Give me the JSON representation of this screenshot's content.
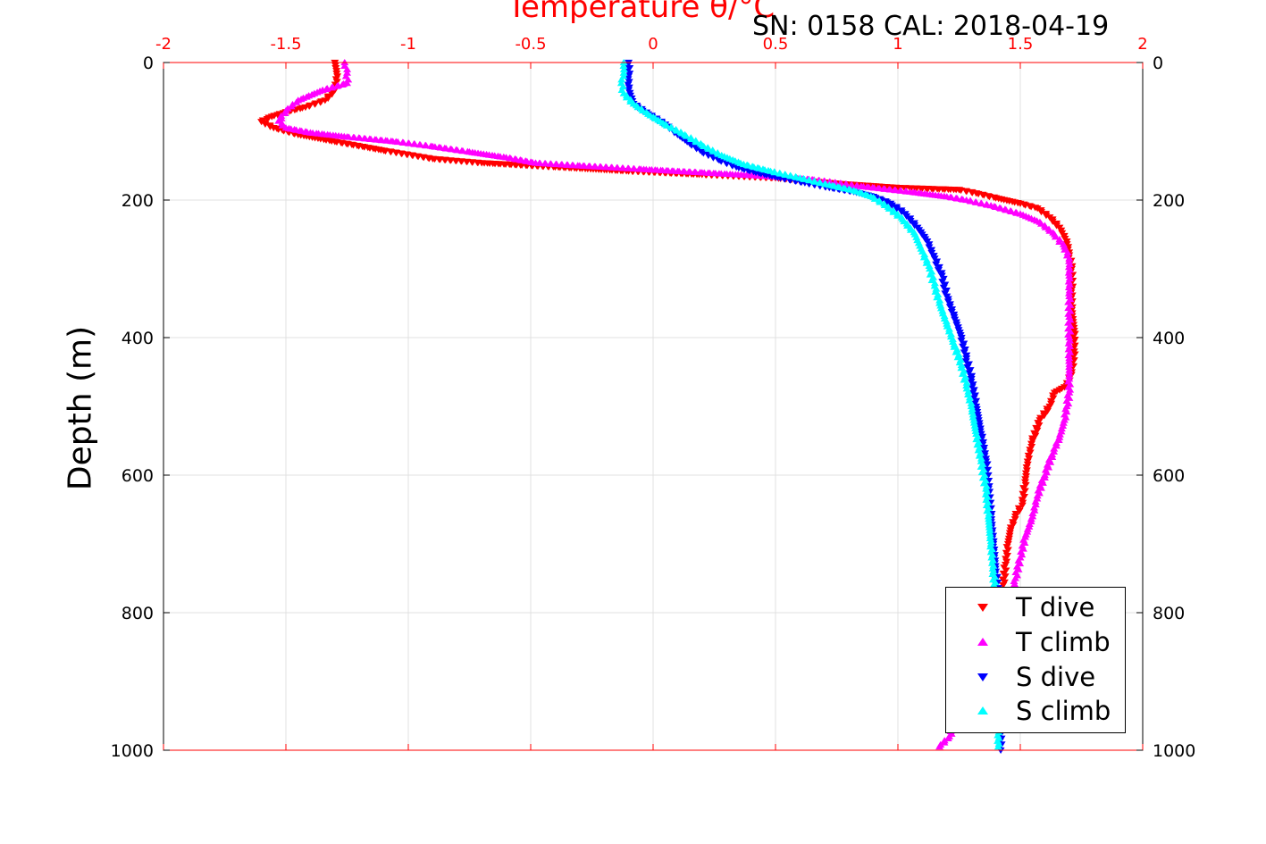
{
  "chart_data": {
    "type": "scatter",
    "title": "Temperature θ/°C",
    "subtitle": "SN: 0158  CAL: 2018-04-19",
    "ylabel": "Depth (m)",
    "x_axis": {
      "position": "top",
      "color": "#ff0000",
      "range": [
        -2,
        2
      ],
      "ticks": [
        "-2",
        "-1.5",
        "-1",
        "-0.5",
        "0",
        "0.5",
        "1",
        "1.5",
        "2"
      ]
    },
    "y_axis": {
      "reversed": true,
      "range": [
        0,
        1000
      ],
      "ticks": [
        "0",
        "200",
        "400",
        "600",
        "800",
        "1000"
      ],
      "mirrored_right": true
    },
    "grid": true,
    "legend_position": "bottom-right",
    "series": [
      {
        "name": "T dive",
        "color": "#ff0000",
        "marker": "triangle-down",
        "points": [
          [
            -1.3,
            0
          ],
          [
            -1.29,
            20
          ],
          [
            -1.3,
            40
          ],
          [
            -1.34,
            55
          ],
          [
            -1.42,
            65
          ],
          [
            -1.5,
            72
          ],
          [
            -1.57,
            80
          ],
          [
            -1.6,
            86
          ],
          [
            -1.55,
            95
          ],
          [
            -1.45,
            105
          ],
          [
            -1.3,
            115
          ],
          [
            -1.1,
            128
          ],
          [
            -0.9,
            140
          ],
          [
            -0.7,
            146
          ],
          [
            -0.4,
            152
          ],
          [
            -0.1,
            158
          ],
          [
            0.2,
            163
          ],
          [
            0.5,
            168
          ],
          [
            0.75,
            176
          ],
          [
            1.0,
            182
          ],
          [
            1.25,
            185
          ],
          [
            1.32,
            190
          ],
          [
            1.4,
            197
          ],
          [
            1.5,
            205
          ],
          [
            1.57,
            212
          ],
          [
            1.62,
            225
          ],
          [
            1.66,
            240
          ],
          [
            1.69,
            260
          ],
          [
            1.7,
            280
          ],
          [
            1.71,
            300
          ],
          [
            1.71,
            330
          ],
          [
            1.71,
            360
          ],
          [
            1.72,
            390
          ],
          [
            1.72,
            420
          ],
          [
            1.71,
            450
          ],
          [
            1.69,
            470
          ],
          [
            1.64,
            480
          ],
          [
            1.62,
            500
          ],
          [
            1.58,
            520
          ],
          [
            1.55,
            550
          ],
          [
            1.53,
            580
          ],
          [
            1.52,
            610
          ],
          [
            1.51,
            640
          ],
          [
            1.48,
            660
          ],
          [
            1.46,
            680
          ],
          [
            1.45,
            700
          ],
          [
            1.44,
            730
          ],
          [
            1.43,
            760
          ]
        ]
      },
      {
        "name": "T climb",
        "color": "#ff00ff",
        "marker": "triangle-up",
        "points": [
          [
            -1.26,
            0
          ],
          [
            -1.25,
            15
          ],
          [
            -1.25,
            30
          ],
          [
            -1.35,
            40
          ],
          [
            -1.45,
            55
          ],
          [
            -1.5,
            70
          ],
          [
            -1.53,
            85
          ],
          [
            -1.5,
            95
          ],
          [
            -1.4,
            102
          ],
          [
            -1.25,
            108
          ],
          [
            -1.05,
            115
          ],
          [
            -0.9,
            122
          ],
          [
            -0.75,
            130
          ],
          [
            -0.6,
            138
          ],
          [
            -0.48,
            146
          ],
          [
            -0.3,
            150
          ],
          [
            -0.05,
            155
          ],
          [
            0.2,
            160
          ],
          [
            0.45,
            165
          ],
          [
            0.65,
            170
          ],
          [
            0.85,
            180
          ],
          [
            1.05,
            188
          ],
          [
            1.2,
            195
          ],
          [
            1.28,
            200
          ],
          [
            1.38,
            208
          ],
          [
            1.5,
            220
          ],
          [
            1.58,
            232
          ],
          [
            1.64,
            250
          ],
          [
            1.68,
            268
          ],
          [
            1.7,
            285
          ],
          [
            1.7,
            310
          ],
          [
            1.7,
            340
          ],
          [
            1.7,
            370
          ],
          [
            1.7,
            400
          ],
          [
            1.7,
            430
          ],
          [
            1.7,
            460
          ],
          [
            1.7,
            480
          ],
          [
            1.69,
            500
          ],
          [
            1.68,
            520
          ],
          [
            1.66,
            545
          ],
          [
            1.63,
            570
          ],
          [
            1.6,
            600
          ],
          [
            1.57,
            630
          ],
          [
            1.55,
            660
          ],
          [
            1.52,
            690
          ],
          [
            1.5,
            720
          ],
          [
            1.48,
            750
          ],
          [
            1.46,
            780
          ],
          [
            1.45,
            800
          ],
          [
            1.25,
            950
          ],
          [
            1.21,
            980
          ],
          [
            1.17,
            995
          ]
        ]
      },
      {
        "name": "S dive",
        "color": "#0000ff",
        "marker": "triangle-down",
        "points": [
          [
            -0.1,
            0
          ],
          [
            -0.1,
            20
          ],
          [
            -0.1,
            40
          ],
          [
            -0.08,
            60
          ],
          [
            -0.02,
            75
          ],
          [
            0.05,
            90
          ],
          [
            0.1,
            105
          ],
          [
            0.15,
            118
          ],
          [
            0.2,
            130
          ],
          [
            0.27,
            142
          ],
          [
            0.34,
            152
          ],
          [
            0.42,
            160
          ],
          [
            0.52,
            168
          ],
          [
            0.62,
            175
          ],
          [
            0.72,
            182
          ],
          [
            0.82,
            188
          ],
          [
            0.9,
            195
          ],
          [
            0.97,
            205
          ],
          [
            1.03,
            220
          ],
          [
            1.08,
            240
          ],
          [
            1.12,
            260
          ],
          [
            1.15,
            285
          ],
          [
            1.18,
            310
          ],
          [
            1.2,
            340
          ],
          [
            1.23,
            370
          ],
          [
            1.26,
            400
          ],
          [
            1.28,
            430
          ],
          [
            1.3,
            460
          ],
          [
            1.32,
            500
          ],
          [
            1.34,
            540
          ],
          [
            1.36,
            580
          ],
          [
            1.37,
            620
          ],
          [
            1.38,
            660
          ],
          [
            1.39,
            700
          ],
          [
            1.4,
            740
          ],
          [
            1.41,
            780
          ],
          [
            1.41,
            820
          ],
          [
            1.42,
            860
          ],
          [
            1.42,
            900
          ],
          [
            1.42,
            940
          ],
          [
            1.42,
            970
          ],
          [
            1.42,
            1000
          ]
        ]
      },
      {
        "name": "S climb",
        "color": "#00ffff",
        "marker": "triangle-up",
        "points": [
          [
            -0.12,
            0
          ],
          [
            -0.12,
            15
          ],
          [
            -0.13,
            30
          ],
          [
            -0.12,
            45
          ],
          [
            -0.08,
            60
          ],
          [
            -0.02,
            75
          ],
          [
            0.05,
            90
          ],
          [
            0.13,
            105
          ],
          [
            0.2,
            120
          ],
          [
            0.28,
            135
          ],
          [
            0.37,
            148
          ],
          [
            0.48,
            158
          ],
          [
            0.6,
            168
          ],
          [
            0.72,
            178
          ],
          [
            0.82,
            186
          ],
          [
            0.9,
            196
          ],
          [
            0.96,
            210
          ],
          [
            1.02,
            228
          ],
          [
            1.07,
            250
          ],
          [
            1.1,
            275
          ],
          [
            1.13,
            300
          ],
          [
            1.15,
            325
          ],
          [
            1.17,
            350
          ],
          [
            1.2,
            380
          ],
          [
            1.23,
            410
          ],
          [
            1.26,
            440
          ],
          [
            1.28,
            470
          ],
          [
            1.3,
            500
          ],
          [
            1.32,
            540
          ],
          [
            1.34,
            580
          ],
          [
            1.36,
            620
          ],
          [
            1.37,
            660
          ],
          [
            1.38,
            700
          ],
          [
            1.39,
            740
          ],
          [
            1.4,
            780
          ],
          [
            1.41,
            820
          ],
          [
            1.41,
            860
          ],
          [
            1.41,
            900
          ],
          [
            1.41,
            940
          ],
          [
            1.41,
            970
          ],
          [
            1.41,
            995
          ]
        ]
      }
    ]
  }
}
